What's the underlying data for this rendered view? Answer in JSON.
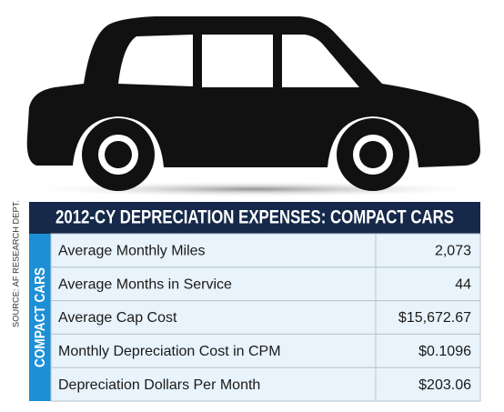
{
  "source": "SOURCE: AF RESEARCH DEPT.",
  "table": {
    "title": "2012-CY DEPRECIATION EXPENSES: COMPACT CARS",
    "side_label": "COMPACT CARS",
    "rows": [
      [
        "Average Monthly Miles",
        "2,073"
      ],
      [
        "Average Months in Service",
        "44"
      ],
      [
        "Average Cap Cost",
        "$15,672.67"
      ],
      [
        "Monthly Depreciation Cost in CPM",
        "$0.1096"
      ],
      [
        "Depreciation Dollars Per Month",
        "$203.06"
      ]
    ]
  }
}
